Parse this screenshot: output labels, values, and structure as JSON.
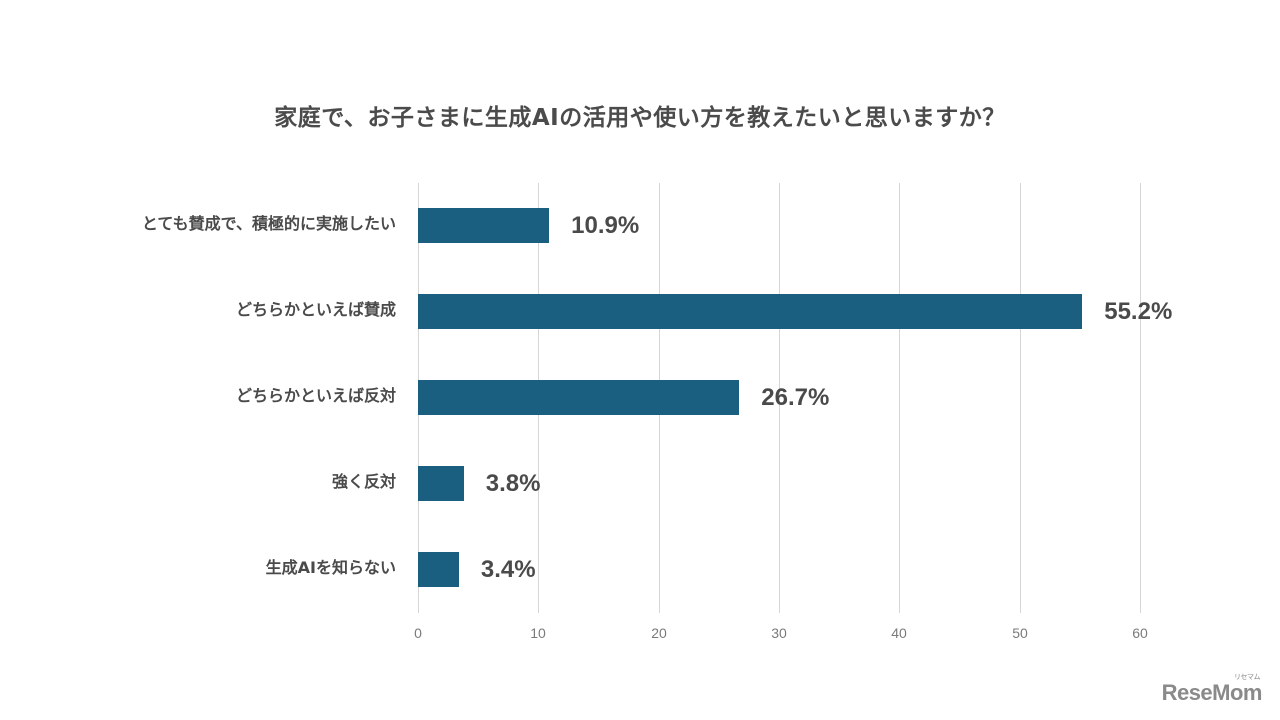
{
  "chart_data": {
    "type": "bar",
    "orientation": "horizontal",
    "title": "家庭で、お子さまに生成AIの活用や使い方を教えたいと思いますか？",
    "xlabel": "",
    "ylabel": "",
    "xlim": [
      0,
      60
    ],
    "x_ticks": [
      "0",
      "10",
      "20",
      "30",
      "40",
      "50",
      "60"
    ],
    "grid": true,
    "legend": null,
    "categories": [
      "とても賛成で、積極的に実施したい",
      "どちらかといえば賛成",
      "どちらかといえば反対",
      "強く反対",
      "生成AIを知らない"
    ],
    "values": [
      10.9,
      55.2,
      26.7,
      3.8,
      3.4
    ],
    "value_labels": [
      "10.9%",
      "55.2%",
      "26.7%",
      "3.8%",
      "3.4%"
    ],
    "unit": "%",
    "bar_color": "#1a5e80"
  },
  "colors": {
    "bar": "#1a5e80",
    "grid": "#d6d6d6",
    "text": "#4a4a4a",
    "tick": "#7a7a7a"
  },
  "watermark": {
    "brand": "ReseMom",
    "kana": "リセマム"
  }
}
